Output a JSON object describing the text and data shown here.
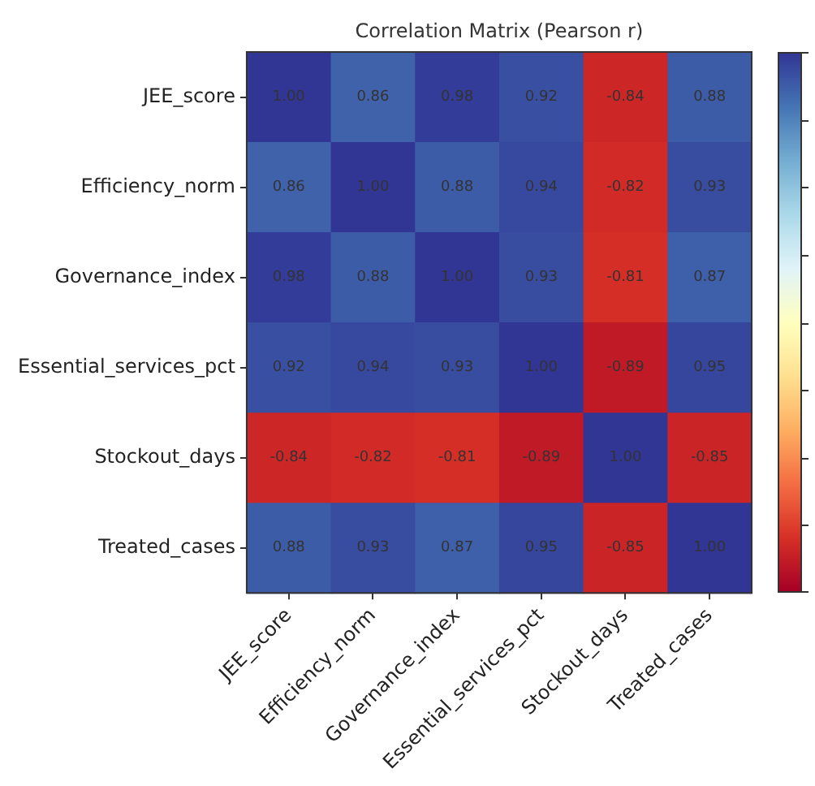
{
  "chart_data": {
    "type": "heatmap",
    "title": "Correlation Matrix (Pearson r)",
    "categories": [
      "JEE_score",
      "Efficiency_norm",
      "Governance_index",
      "Essential_services_pct",
      "Stockout_days",
      "Treated_cases"
    ],
    "y_categories": [
      "JEE_score",
      "Efficiency_norm",
      "Governance_index",
      "Essential_services_pct",
      "Stockout_days",
      "Treated_cases"
    ],
    "cells": [
      [
        1.0,
        0.86,
        0.98,
        0.92,
        -0.84,
        0.88
      ],
      [
        0.86,
        1.0,
        0.88,
        0.94,
        -0.82,
        0.93
      ],
      [
        0.98,
        0.88,
        1.0,
        0.93,
        -0.81,
        0.87
      ],
      [
        0.92,
        0.94,
        0.93,
        1.0,
        -0.89,
        0.95
      ],
      [
        -0.84,
        -0.82,
        -0.81,
        -0.89,
        1.0,
        -0.85
      ],
      [
        0.88,
        0.93,
        0.87,
        0.95,
        -0.85,
        1.0
      ]
    ],
    "cell_labels": [
      [
        "1.00",
        "0.86",
        "0.98",
        "0.92",
        "-0.84",
        "0.88"
      ],
      [
        "0.86",
        "1.00",
        "0.88",
        "0.94",
        "-0.82",
        "0.93"
      ],
      [
        "0.98",
        "0.88",
        "1.00",
        "0.93",
        "-0.81",
        "0.87"
      ],
      [
        "0.92",
        "0.94",
        "0.93",
        "1.00",
        "-0.89",
        "0.95"
      ],
      [
        "-0.84",
        "-0.82",
        "-0.81",
        "-0.89",
        "1.00",
        "-0.85"
      ],
      [
        "0.88",
        "0.93",
        "0.87",
        "0.95",
        "-0.85",
        "1.00"
      ]
    ]
  }
}
